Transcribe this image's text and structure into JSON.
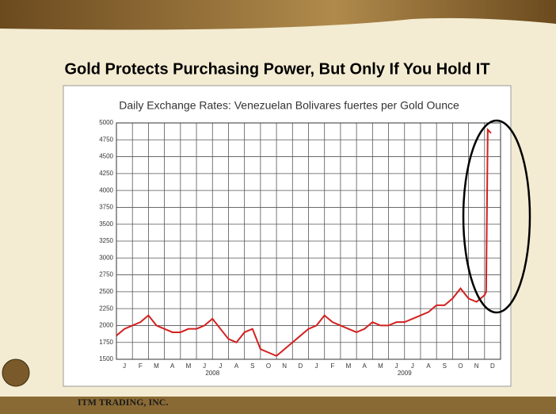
{
  "slide": {
    "title": "Gold Protects Purchasing Power, But Only If You Hold IT",
    "footer": "ITM TRADING, INC."
  },
  "chart_data": {
    "type": "line",
    "title": "Daily Exchange Rates: Venezuelan Bolivares fuertes per Gold Ounce",
    "categories": [
      "J",
      "F",
      "M",
      "A",
      "M",
      "J",
      "J",
      "A",
      "S",
      "O",
      "N",
      "D",
      "J",
      "F",
      "M",
      "A",
      "M",
      "J",
      "J",
      "A",
      "S",
      "O",
      "N",
      "D"
    ],
    "year_labels": [
      "2008",
      "2009"
    ],
    "xlim": [
      0,
      24
    ],
    "x": [
      0,
      0.5,
      1,
      1.5,
      2,
      2.5,
      3,
      3.5,
      4,
      4.5,
      5,
      5.5,
      6,
      6.5,
      7,
      7.5,
      8,
      8.5,
      9,
      9.5,
      10,
      10.5,
      11,
      11.5,
      12,
      12.5,
      13,
      13.5,
      14,
      14.5,
      15,
      15.5,
      16,
      16.5,
      17,
      17.5,
      18,
      18.5,
      19,
      19.5,
      20,
      20.5,
      21,
      21.5,
      22,
      22.5,
      23,
      23.1,
      23.2,
      23.4
    ],
    "series": [
      {
        "color": "#d42020",
        "values": [
          1850,
          1950,
          2000,
          2050,
          2150,
          2000,
          1950,
          1900,
          1900,
          1950,
          1950,
          2000,
          2100,
          1950,
          1800,
          1750,
          1900,
          1950,
          1650,
          1600,
          1550,
          1650,
          1750,
          1850,
          1950,
          2000,
          2150,
          2050,
          2000,
          1950,
          1900,
          1950,
          2050,
          2000,
          2000,
          2050,
          2050,
          2100,
          2150,
          2200,
          2300,
          2300,
          2400,
          2550,
          2400,
          2350,
          2450,
          2500,
          4900,
          4850
        ]
      }
    ],
    "ylim": [
      1500,
      5000
    ],
    "yticks": [
      1500,
      1750,
      2000,
      2250,
      2500,
      2750,
      3000,
      3250,
      3500,
      3750,
      4000,
      4250,
      4500,
      4750,
      5000
    ],
    "grid": true
  }
}
